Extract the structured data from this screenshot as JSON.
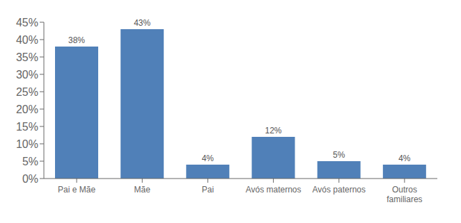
{
  "chart_data": {
    "type": "bar",
    "categories": [
      "Pai e Mãe",
      "Mãe",
      "Pai",
      "Avós maternos",
      "Avós paternos",
      "Outros\nfamiliares"
    ],
    "values": [
      38,
      43,
      4,
      12,
      5,
      4
    ],
    "value_labels": [
      "38%",
      "43%",
      "4%",
      "12%",
      "5%",
      "4%"
    ],
    "data_labels": true,
    "color": "#5080b8",
    "ylim": [
      0,
      45
    ],
    "yticks": [
      {
        "value": 0,
        "label": "0%"
      },
      {
        "value": 5,
        "label": "5%"
      },
      {
        "value": 10,
        "label": "10%"
      },
      {
        "value": 15,
        "label": "15%"
      },
      {
        "value": 20,
        "label": "20%"
      },
      {
        "value": 25,
        "label": "25%"
      },
      {
        "value": 30,
        "label": "30%"
      },
      {
        "value": 35,
        "label": "35%"
      },
      {
        "value": 40,
        "label": "40%"
      },
      {
        "value": 45,
        "label": "45%"
      }
    ],
    "grid": false
  }
}
